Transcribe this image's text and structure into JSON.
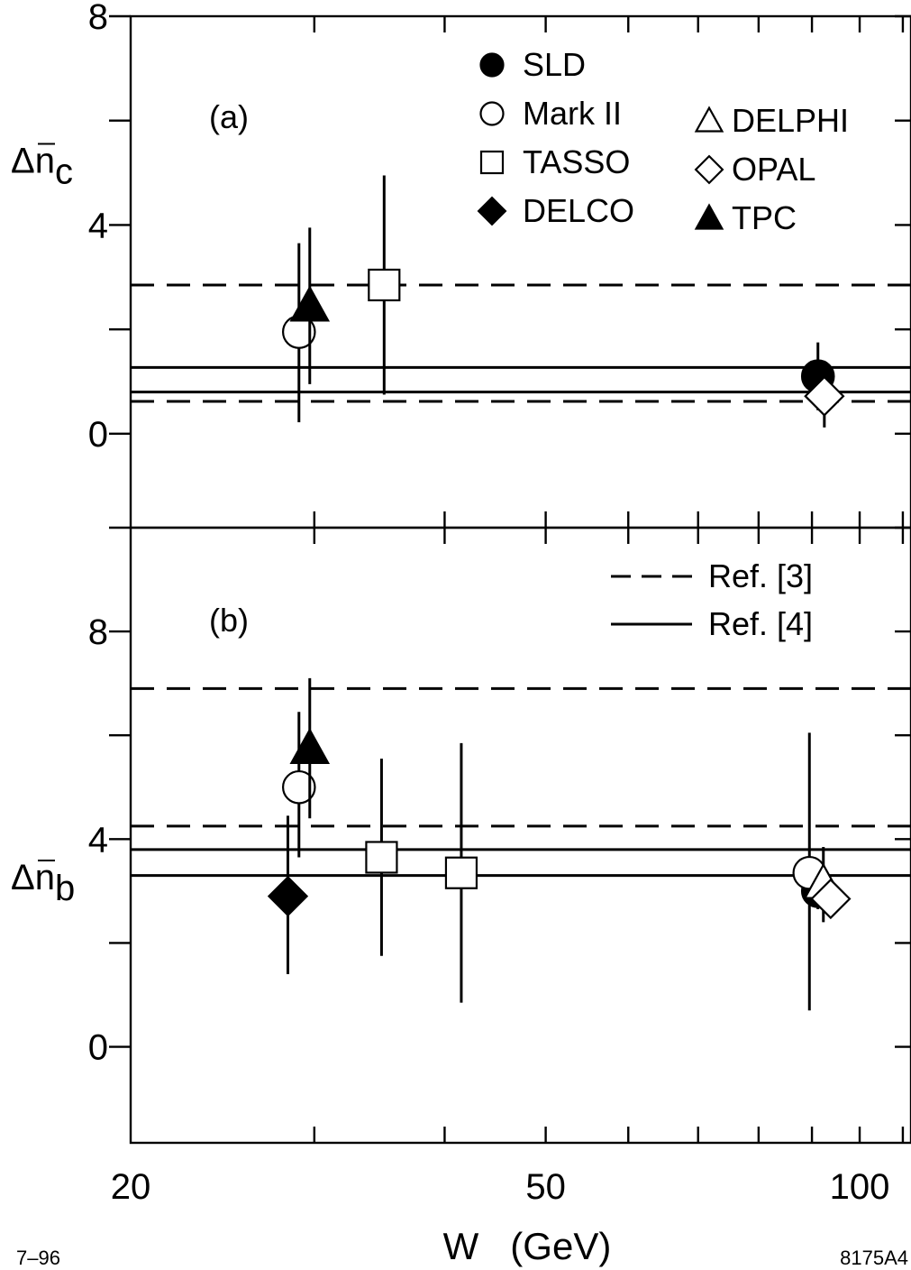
{
  "chart_data": [
    {
      "panel_label": "(a)",
      "type": "scatter",
      "xscale": "log",
      "xlim": [
        20,
        112
      ],
      "ylim": [
        -1.8,
        8
      ],
      "yticks": [
        0,
        4,
        8
      ],
      "ylabel": {
        "prefix": "Δ",
        "base": "n",
        "sub": "c"
      },
      "series": [
        {
          "name": "SLD",
          "marker": "circle",
          "filled": true,
          "points": [
            {
              "x": 91.2,
              "y": 1.1,
              "lo": 0.45,
              "hi": 1.75
            }
          ]
        },
        {
          "name": "Mark II",
          "marker": "circle",
          "filled": false,
          "points": [
            {
              "x": 29,
              "y": 1.95,
              "lo": 0.22,
              "hi": 3.65
            }
          ]
        },
        {
          "name": "TASSO",
          "marker": "square",
          "filled": false,
          "points": [
            {
              "x": 35,
              "y": 2.85,
              "lo": 0.75,
              "hi": 4.95
            }
          ]
        },
        {
          "name": "DELCO",
          "marker": "diamond",
          "filled": true,
          "points": []
        },
        {
          "name": "DELPHI",
          "marker": "triangle",
          "filled": false,
          "points": []
        },
        {
          "name": "OPAL",
          "marker": "diamond",
          "filled": false,
          "points": [
            {
              "x": 92.5,
              "y": 0.72,
              "lo": 0.12,
              "hi": 1.35
            }
          ]
        },
        {
          "name": "TPC",
          "marker": "triangle",
          "filled": true,
          "points": [
            {
              "x": 29.7,
              "y": 2.45,
              "lo": 0.95,
              "hi": 3.95
            }
          ]
        }
      ],
      "ref_lines": [
        {
          "style": "dashed",
          "y": 2.85
        },
        {
          "style": "dashed",
          "y": 0.62
        },
        {
          "style": "solid",
          "y": 1.27
        },
        {
          "style": "solid",
          "y": 0.8
        }
      ]
    },
    {
      "panel_label": "(b)",
      "type": "scatter",
      "xscale": "log",
      "xlim": [
        20,
        112
      ],
      "ylim": [
        -1.85,
        10
      ],
      "yticks": [
        0,
        4,
        8
      ],
      "ylabel": {
        "prefix": "Δ",
        "base": "n",
        "sub": "b"
      },
      "xticks": [
        20,
        50,
        100
      ],
      "xlabel": "W   (GeV)",
      "series": [
        {
          "name": "SLD",
          "marker": "circle",
          "filled": true,
          "points": [
            {
              "x": 91.2,
              "y": 3.0,
              "lo": 2.65,
              "hi": 3.35
            }
          ]
        },
        {
          "name": "Mark II",
          "marker": "circle",
          "filled": false,
          "points": [
            {
              "x": 29,
              "y": 5.0,
              "lo": 3.65,
              "hi": 6.45
            },
            {
              "x": 89.5,
              "y": 3.35,
              "lo": 0.7,
              "hi": 6.05
            }
          ]
        },
        {
          "name": "TASSO",
          "marker": "square",
          "filled": false,
          "points": [
            {
              "x": 34.8,
              "y": 3.65,
              "lo": 1.75,
              "hi": 5.55
            },
            {
              "x": 41.5,
              "y": 3.35,
              "lo": 0.85,
              "hi": 5.85
            }
          ]
        },
        {
          "name": "DELCO",
          "marker": "diamond",
          "filled": true,
          "points": [
            {
              "x": 28.3,
              "y": 2.9,
              "lo": 1.4,
              "hi": 4.45
            }
          ]
        },
        {
          "name": "DELPHI",
          "marker": "triangle",
          "filled": false,
          "points": [
            {
              "x": 92.3,
              "y": 3.15,
              "lo": 2.4,
              "hi": 3.85
            }
          ]
        },
        {
          "name": "OPAL",
          "marker": "diamond",
          "filled": false,
          "points": [
            {
              "x": 93.8,
              "y": 2.85,
              "lo": 2.5,
              "hi": 3.2
            }
          ]
        },
        {
          "name": "TPC",
          "marker": "triangle",
          "filled": true,
          "points": [
            {
              "x": 29.7,
              "y": 5.75,
              "lo": 4.4,
              "hi": 7.1
            }
          ]
        }
      ],
      "ref_lines": [
        {
          "style": "dashed",
          "y": 6.9
        },
        {
          "style": "dashed",
          "y": 4.25
        },
        {
          "style": "solid",
          "y": 3.8
        },
        {
          "style": "solid",
          "y": 3.3
        }
      ]
    }
  ],
  "legend_markers": {
    "entries": [
      {
        "label": "SLD",
        "marker": "circle",
        "filled": true
      },
      {
        "label": "Mark II",
        "marker": "circle",
        "filled": false
      },
      {
        "label": "TASSO",
        "marker": "square",
        "filled": false
      },
      {
        "label": "DELCO",
        "marker": "diamond",
        "filled": true
      },
      {
        "label": "DELPHI",
        "marker": "triangle",
        "filled": false
      },
      {
        "label": "OPAL",
        "marker": "diamond",
        "filled": false
      },
      {
        "label": "TPC",
        "marker": "triangle",
        "filled": true
      }
    ]
  },
  "legend_lines": {
    "entries": [
      {
        "label": "Ref.  [3]",
        "style": "dashed"
      },
      {
        "label": "Ref.  [4]",
        "style": "solid"
      }
    ]
  },
  "footer": {
    "left": "7–96",
    "right": "8175A4"
  }
}
